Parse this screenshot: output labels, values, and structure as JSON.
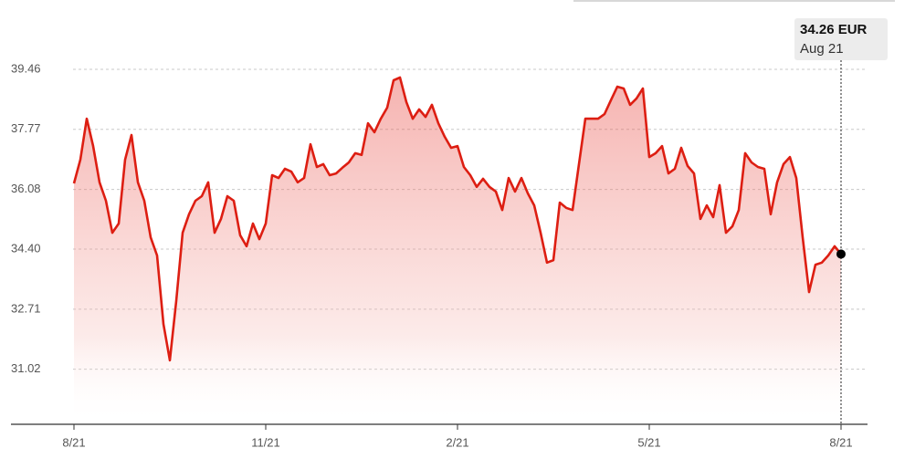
{
  "chart_data": {
    "type": "line",
    "color": "#dd1e12",
    "grid": true,
    "tooltip": {
      "title": "34.26 EUR",
      "subtitle": "Aug 21"
    },
    "categories": [
      "8/21",
      null,
      null,
      null,
      null,
      null,
      null,
      null,
      null,
      null,
      null,
      null,
      null,
      null,
      null,
      null,
      null,
      null,
      null,
      null,
      null,
      null,
      null,
      null,
      null,
      null,
      null,
      null,
      null,
      null,
      "11/21",
      null,
      null,
      null,
      null,
      null,
      null,
      null,
      null,
      null,
      null,
      null,
      null,
      null,
      null,
      null,
      null,
      null,
      null,
      null,
      null,
      null,
      null,
      null,
      null,
      null,
      null,
      null,
      null,
      null,
      "2/21",
      null,
      null,
      null,
      null,
      null,
      null,
      null,
      null,
      null,
      null,
      null,
      null,
      null,
      null,
      null,
      null,
      null,
      null,
      null,
      null,
      null,
      null,
      null,
      null,
      null,
      null,
      null,
      null,
      null,
      "5/21",
      null,
      null,
      null,
      null,
      null,
      null,
      null,
      null,
      null,
      null,
      null,
      null,
      null,
      null,
      null,
      null,
      null,
      null,
      null,
      null,
      null,
      null,
      null,
      null,
      null,
      null,
      null,
      null,
      null,
      "8/21"
    ],
    "values": [
      36.25,
      36.92,
      38.07,
      37.3,
      36.28,
      35.76,
      34.86,
      35.12,
      36.92,
      37.61,
      36.28,
      35.76,
      34.73,
      34.22,
      32.29,
      31.27,
      32.94,
      34.86,
      35.38,
      35.76,
      35.89,
      36.28,
      34.86,
      35.25,
      35.89,
      35.76,
      34.79,
      34.48,
      35.12,
      34.68,
      35.12,
      36.48,
      36.4,
      36.66,
      36.58,
      36.28,
      36.4,
      37.35,
      36.71,
      36.79,
      36.48,
      36.53,
      36.69,
      36.84,
      37.1,
      37.05,
      37.94,
      37.69,
      38.07,
      38.38,
      39.15,
      39.23,
      38.54,
      38.07,
      38.33,
      38.12,
      38.46,
      37.94,
      37.56,
      37.25,
      37.3,
      36.71,
      36.48,
      36.15,
      36.38,
      36.15,
      36.02,
      35.5,
      36.4,
      36.02,
      36.4,
      35.97,
      35.63,
      34.86,
      34.02,
      34.09,
      35.71,
      35.56,
      35.5,
      36.79,
      38.07,
      38.07,
      38.07,
      38.2,
      38.59,
      38.97,
      38.92,
      38.46,
      38.64,
      38.92,
      36.99,
      37.1,
      37.3,
      36.53,
      36.66,
      37.25,
      36.74,
      36.53,
      35.25,
      35.63,
      35.3,
      36.2,
      34.86,
      35.04,
      35.5,
      37.1,
      36.84,
      36.71,
      36.66,
      35.38,
      36.28,
      36.79,
      36.99,
      36.4,
      34.73,
      33.19,
      33.96,
      34.02,
      34.22,
      34.48,
      34.26
    ],
    "ylim": [
      29.47,
      41.41
    ],
    "yticks": [
      39.46,
      37.77,
      36.08,
      {
        "value": 34.4,
        "label": "34.40"
      },
      32.71,
      31.02
    ]
  }
}
